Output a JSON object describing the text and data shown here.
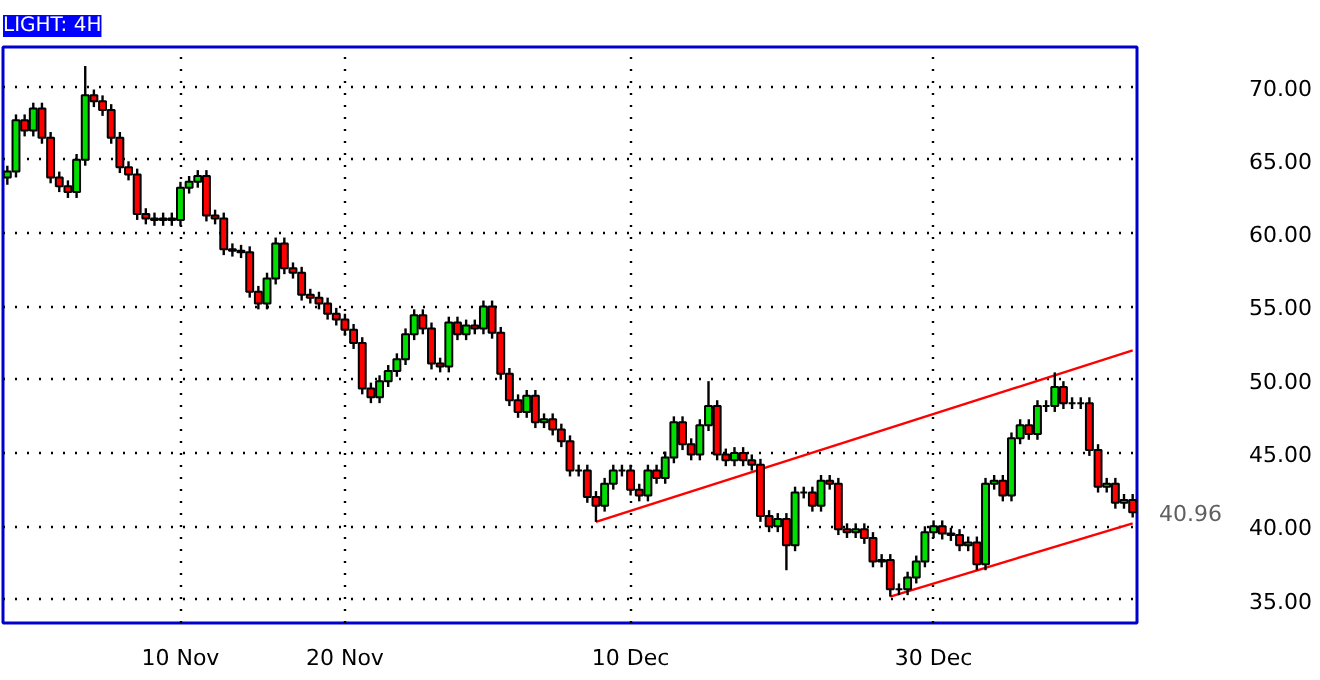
{
  "chart_data": {
    "type": "candlestick",
    "title": "LIGHT: 4H",
    "categories": [
      null,
      null,
      null,
      null,
      null,
      null,
      null,
      null,
      null,
      null,
      null,
      null,
      null,
      null,
      null,
      null,
      null,
      null,
      null,
      null,
      "10 Nov",
      null,
      null,
      null,
      null,
      null,
      null,
      null,
      null,
      null,
      null,
      null,
      null,
      null,
      null,
      null,
      null,
      null,
      null,
      "20 Nov",
      null,
      null,
      null,
      null,
      null,
      null,
      null,
      null,
      null,
      null,
      null,
      null,
      null,
      null,
      null,
      null,
      null,
      null,
      null,
      null,
      null,
      null,
      null,
      null,
      null,
      null,
      null,
      null,
      null,
      null,
      null,
      null,
      "10 Dec",
      null,
      null,
      null,
      null,
      null,
      null,
      null,
      null,
      null,
      null,
      null,
      null,
      null,
      null,
      null,
      null,
      null,
      null,
      null,
      null,
      null,
      null,
      null,
      null,
      null,
      null,
      null,
      null,
      null,
      null,
      null,
      null,
      null,
      null,
      "30 Dec",
      null,
      null,
      null,
      null,
      null,
      null,
      null,
      null,
      null,
      null,
      null,
      null,
      null,
      null,
      null,
      null,
      null,
      null,
      null,
      null,
      null,
      null,
      null
    ],
    "ylim": [
      33.4,
      72.7
    ],
    "yticks": [
      {
        "value": 35,
        "label": "35.00"
      },
      {
        "value": 40,
        "label": "40.00"
      },
      {
        "value": 45,
        "label": "45.00"
      },
      {
        "value": 50,
        "label": "50.00"
      },
      {
        "value": 55,
        "label": "55.00"
      },
      {
        "value": 60,
        "label": "60.00"
      },
      {
        "value": 65,
        "label": "65.00"
      },
      {
        "value": 70,
        "label": "70.00"
      }
    ],
    "grid": true,
    "series": [
      {
        "ohlc": [
          [
            63.8,
            64.6,
            63.3,
            64.2
          ],
          [
            64.2,
            68.1,
            63.8,
            67.7
          ],
          [
            67.7,
            68.1,
            66.6,
            67.0
          ],
          [
            67.0,
            68.9,
            66.6,
            68.5
          ],
          [
            68.5,
            68.9,
            66.1,
            66.5
          ],
          [
            66.5,
            66.9,
            63.4,
            63.8
          ],
          [
            63.8,
            64.2,
            62.8,
            63.2
          ],
          [
            63.2,
            63.6,
            62.4,
            62.8
          ],
          [
            62.8,
            65.4,
            62.4,
            65.0
          ],
          [
            65.0,
            71.4,
            64.6,
            69.4
          ],
          [
            69.4,
            69.8,
            68.6,
            69.0
          ],
          [
            69.0,
            69.4,
            68.0,
            68.4
          ],
          [
            68.4,
            68.8,
            66.1,
            66.5
          ],
          [
            66.5,
            66.9,
            64.1,
            64.5
          ],
          [
            64.5,
            64.9,
            63.6,
            64.0
          ],
          [
            64.0,
            64.4,
            60.9,
            61.3
          ],
          [
            61.3,
            61.7,
            60.6,
            61.0
          ],
          [
            61.0,
            61.4,
            60.5,
            60.9
          ],
          [
            60.9,
            61.4,
            60.5,
            61.0
          ],
          [
            61.0,
            61.4,
            60.5,
            60.9
          ],
          [
            60.9,
            63.5,
            60.5,
            63.1
          ],
          [
            63.1,
            63.9,
            62.7,
            63.5
          ],
          [
            63.5,
            64.3,
            63.1,
            63.9
          ],
          [
            63.9,
            64.3,
            60.8,
            61.2
          ],
          [
            61.2,
            61.6,
            60.6,
            61.0
          ],
          [
            61.0,
            61.4,
            58.5,
            58.9
          ],
          [
            58.9,
            59.3,
            58.4,
            58.8
          ],
          [
            58.8,
            59.2,
            58.3,
            58.7
          ],
          [
            58.7,
            59.1,
            55.6,
            56.0
          ],
          [
            56.0,
            56.4,
            54.8,
            55.2
          ],
          [
            55.2,
            57.3,
            54.8,
            56.9
          ],
          [
            56.9,
            59.7,
            56.5,
            59.3
          ],
          [
            59.3,
            59.7,
            57.2,
            57.6
          ],
          [
            57.6,
            58.0,
            56.9,
            57.3
          ],
          [
            57.3,
            57.7,
            55.4,
            55.8
          ],
          [
            55.8,
            56.2,
            55.2,
            55.6
          ],
          [
            55.6,
            56.0,
            54.8,
            55.2
          ],
          [
            55.2,
            55.6,
            54.1,
            54.5
          ],
          [
            54.5,
            54.9,
            53.7,
            54.1
          ],
          [
            54.1,
            54.5,
            53.0,
            53.4
          ],
          [
            53.4,
            53.8,
            52.1,
            52.5
          ],
          [
            52.5,
            52.9,
            49.0,
            49.4
          ],
          [
            49.4,
            49.8,
            48.4,
            48.8
          ],
          [
            48.8,
            50.3,
            48.4,
            49.9
          ],
          [
            49.9,
            51.0,
            49.5,
            50.6
          ],
          [
            50.6,
            51.8,
            50.2,
            51.4
          ],
          [
            51.4,
            53.5,
            51.0,
            53.1
          ],
          [
            53.1,
            54.8,
            52.7,
            54.4
          ],
          [
            54.4,
            54.8,
            53.1,
            53.5
          ],
          [
            53.5,
            53.9,
            50.7,
            51.1
          ],
          [
            51.1,
            51.5,
            50.5,
            50.9
          ],
          [
            50.9,
            54.3,
            50.5,
            53.9
          ],
          [
            53.9,
            54.3,
            52.7,
            53.1
          ],
          [
            53.1,
            54.1,
            52.7,
            53.7
          ],
          [
            53.7,
            54.1,
            53.1,
            53.5
          ],
          [
            53.5,
            55.4,
            53.1,
            55.0
          ],
          [
            55.0,
            55.4,
            52.8,
            53.2
          ],
          [
            53.2,
            53.6,
            50.0,
            50.4
          ],
          [
            50.4,
            50.8,
            48.2,
            48.6
          ],
          [
            48.6,
            49.0,
            47.4,
            47.8
          ],
          [
            47.8,
            49.3,
            47.4,
            48.9
          ],
          [
            48.9,
            49.3,
            46.7,
            47.1
          ],
          [
            47.1,
            47.7,
            46.7,
            47.3
          ],
          [
            47.3,
            47.7,
            46.2,
            46.6
          ],
          [
            46.6,
            47.0,
            45.4,
            45.8
          ],
          [
            45.8,
            46.2,
            43.4,
            43.8
          ],
          [
            43.8,
            44.2,
            43.4,
            43.8
          ],
          [
            43.8,
            44.2,
            41.6,
            42.0
          ],
          [
            42.0,
            42.4,
            40.3,
            41.4
          ],
          [
            41.4,
            43.3,
            41.0,
            42.9
          ],
          [
            42.9,
            44.2,
            42.5,
            43.8
          ],
          [
            43.8,
            44.2,
            43.4,
            43.8
          ],
          [
            43.8,
            44.2,
            42.1,
            42.5
          ],
          [
            42.5,
            42.9,
            41.7,
            42.1
          ],
          [
            42.1,
            44.2,
            41.7,
            43.8
          ],
          [
            43.8,
            44.2,
            42.9,
            43.3
          ],
          [
            43.3,
            45.1,
            42.9,
            44.7
          ],
          [
            44.7,
            47.5,
            44.3,
            47.1
          ],
          [
            47.1,
            47.5,
            45.2,
            45.6
          ],
          [
            45.6,
            46.0,
            44.5,
            44.9
          ],
          [
            44.9,
            47.3,
            44.5,
            46.9
          ],
          [
            46.9,
            49.9,
            46.5,
            48.2
          ],
          [
            48.2,
            48.6,
            44.5,
            44.9
          ],
          [
            44.9,
            45.3,
            44.1,
            44.5
          ],
          [
            44.5,
            45.4,
            44.1,
            45.0
          ],
          [
            45.0,
            45.4,
            44.1,
            44.5
          ],
          [
            44.5,
            44.9,
            43.8,
            44.2
          ],
          [
            44.2,
            44.6,
            40.3,
            40.7
          ],
          [
            40.7,
            41.1,
            39.6,
            40.0
          ],
          [
            40.0,
            40.9,
            39.6,
            40.5
          ],
          [
            40.5,
            40.9,
            37.0,
            38.7
          ],
          [
            38.7,
            42.7,
            38.3,
            42.3
          ],
          [
            42.3,
            42.7,
            41.9,
            42.3
          ],
          [
            42.3,
            42.7,
            41.0,
            41.4
          ],
          [
            41.4,
            43.5,
            41.0,
            43.1
          ],
          [
            43.1,
            43.5,
            42.5,
            42.9
          ],
          [
            42.9,
            43.3,
            39.4,
            39.8
          ],
          [
            39.8,
            40.2,
            39.2,
            39.6
          ],
          [
            39.6,
            40.2,
            39.2,
            39.8
          ],
          [
            39.8,
            40.2,
            38.8,
            39.2
          ],
          [
            39.2,
            39.6,
            37.2,
            37.6
          ],
          [
            37.6,
            38.1,
            37.2,
            37.7
          ],
          [
            37.7,
            38.1,
            35.2,
            35.7
          ],
          [
            35.7,
            36.1,
            35.3,
            35.7
          ],
          [
            35.7,
            36.9,
            35.3,
            36.5
          ],
          [
            36.5,
            38.0,
            36.1,
            37.6
          ],
          [
            37.6,
            40.0,
            37.2,
            39.6
          ],
          [
            39.6,
            40.4,
            39.2,
            40.0
          ],
          [
            40.0,
            40.4,
            39.1,
            39.5
          ],
          [
            39.5,
            39.9,
            39.0,
            39.4
          ],
          [
            39.4,
            39.8,
            38.3,
            38.7
          ],
          [
            38.7,
            39.3,
            38.3,
            38.9
          ],
          [
            38.9,
            39.3,
            37.0,
            37.4
          ],
          [
            37.4,
            43.3,
            37.0,
            42.9
          ],
          [
            42.9,
            43.5,
            42.5,
            43.1
          ],
          [
            43.1,
            43.5,
            41.7,
            42.1
          ],
          [
            42.1,
            46.4,
            41.7,
            46.0
          ],
          [
            46.0,
            47.3,
            45.6,
            46.9
          ],
          [
            46.9,
            47.3,
            45.9,
            46.3
          ],
          [
            46.3,
            48.6,
            45.9,
            48.2
          ],
          [
            48.2,
            48.6,
            47.8,
            48.2
          ],
          [
            48.2,
            50.5,
            47.8,
            49.5
          ],
          [
            49.5,
            49.9,
            48.0,
            48.4
          ],
          [
            48.4,
            48.8,
            48.0,
            48.4
          ],
          [
            48.4,
            48.8,
            48.0,
            48.4
          ],
          [
            48.4,
            48.8,
            44.8,
            45.2
          ],
          [
            45.2,
            45.6,
            42.3,
            42.7
          ],
          [
            42.7,
            43.3,
            42.3,
            42.9
          ],
          [
            42.9,
            43.3,
            41.2,
            41.6
          ],
          [
            41.6,
            42.2,
            41.2,
            41.8
          ],
          [
            41.8,
            42.2,
            40.6,
            40.96
          ]
        ],
        "colors": [
          "#00dd00",
          "#00dd00",
          "#ff0000",
          "#00dd00",
          "#ff0000",
          "#ff0000",
          "#ff0000",
          "#ff0000",
          "#00dd00",
          "#00dd00",
          "#ff0000",
          "#ff0000",
          "#ff0000",
          "#ff0000",
          "#ff0000",
          "#ff0000",
          "#ff0000",
          "#ff0000",
          "#00dd00",
          "#ff0000",
          "#00dd00",
          "#00dd00",
          "#00dd00",
          "#ff0000",
          "#ff0000",
          "#ff0000",
          "#ff0000",
          "#ff0000",
          "#ff0000",
          "#ff0000",
          "#00dd00",
          "#00dd00",
          "#ff0000",
          "#ff0000",
          "#ff0000",
          "#ff0000",
          "#ff0000",
          "#ff0000",
          "#ff0000",
          "#ff0000",
          "#ff0000",
          "#ff0000",
          "#ff0000",
          "#00dd00",
          "#00dd00",
          "#00dd00",
          "#00dd00",
          "#00dd00",
          "#ff0000",
          "#ff0000",
          "#ff0000",
          "#00dd00",
          "#ff0000",
          "#00dd00",
          "#ff0000",
          "#00dd00",
          "#ff0000",
          "#ff0000",
          "#ff0000",
          "#ff0000",
          "#00dd00",
          "#ff0000",
          "#00dd00",
          "#ff0000",
          "#ff0000",
          "#ff0000",
          "#000000",
          "#ff0000",
          "#ff0000",
          "#00dd00",
          "#00dd00",
          "#000000",
          "#ff0000",
          "#ff0000",
          "#00dd00",
          "#ff0000",
          "#00dd00",
          "#00dd00",
          "#ff0000",
          "#ff0000",
          "#00dd00",
          "#00dd00",
          "#ff0000",
          "#ff0000",
          "#00dd00",
          "#ff0000",
          "#ff0000",
          "#ff0000",
          "#ff0000",
          "#00dd00",
          "#ff0000",
          "#00dd00",
          "#000000",
          "#ff0000",
          "#00dd00",
          "#ff0000",
          "#ff0000",
          "#ff0000",
          "#00dd00",
          "#ff0000",
          "#ff0000",
          "#00dd00",
          "#ff0000",
          "#000000",
          "#00dd00",
          "#00dd00",
          "#00dd00",
          "#00dd00",
          "#ff0000",
          "#ff0000",
          "#ff0000",
          "#00dd00",
          "#ff0000",
          "#00dd00",
          "#00dd00",
          "#ff0000",
          "#00dd00",
          "#00dd00",
          "#ff0000",
          "#00dd00",
          "#000000",
          "#00dd00",
          "#ff0000",
          "#000000",
          "#000000",
          "#ff0000",
          "#ff0000",
          "#00dd00",
          "#ff0000",
          "#00dd00",
          "#ff0000"
        ]
      },
      {
        "type": "line",
        "values": [
          null,
          null,
          null,
          null,
          null,
          null,
          null,
          null,
          null,
          null,
          null,
          null,
          null,
          null,
          null,
          null,
          null,
          null,
          null,
          null,
          null,
          null,
          null,
          null,
          null,
          null,
          null,
          null,
          null,
          null,
          null,
          null,
          null,
          null,
          null,
          null,
          null,
          null,
          null,
          null,
          null,
          null,
          null,
          null,
          null,
          null,
          null,
          null,
          null,
          null,
          null,
          null,
          null,
          null,
          null,
          null,
          null,
          null,
          null,
          null,
          null,
          null,
          null,
          null,
          null,
          null,
          null,
          null,
          40.3,
          null,
          null,
          null,
          null,
          null,
          null,
          null,
          null,
          null,
          null,
          null,
          null,
          null,
          null,
          null,
          null,
          null,
          null,
          null,
          null,
          null,
          null,
          null,
          null,
          null,
          null,
          null,
          null,
          null,
          null,
          null,
          null,
          null,
          null,
          null,
          null,
          null,
          null,
          null,
          null,
          null,
          null,
          null,
          null,
          null,
          null,
          null,
          null,
          null,
          null,
          null,
          null,
          null,
          null,
          null,
          null,
          null,
          null,
          null,
          null,
          null,
          52.0
        ],
        "color": "#ff0000"
      },
      {
        "type": "line",
        "values": [
          null,
          null,
          null,
          null,
          null,
          null,
          null,
          null,
          null,
          null,
          null,
          null,
          null,
          null,
          null,
          null,
          null,
          null,
          null,
          null,
          null,
          null,
          null,
          null,
          null,
          null,
          null,
          null,
          null,
          null,
          null,
          null,
          null,
          null,
          null,
          null,
          null,
          null,
          null,
          null,
          null,
          null,
          null,
          null,
          null,
          null,
          null,
          null,
          null,
          null,
          null,
          null,
          null,
          null,
          null,
          null,
          null,
          null,
          null,
          null,
          null,
          null,
          null,
          null,
          null,
          null,
          null,
          null,
          null,
          null,
          null,
          null,
          null,
          null,
          null,
          null,
          null,
          null,
          null,
          null,
          null,
          null,
          null,
          null,
          null,
          null,
          null,
          null,
          null,
          null,
          null,
          null,
          null,
          null,
          null,
          null,
          null,
          null,
          null,
          null,
          null,
          null,
          35.2,
          null,
          null,
          null,
          null,
          null,
          null,
          null,
          null,
          null,
          null,
          null,
          null,
          null,
          null,
          null,
          null,
          null,
          null,
          null,
          null,
          null,
          null,
          null,
          null,
          null,
          null,
          null,
          40.2
        ],
        "color": "#ff0000"
      }
    ],
    "annotations": [
      "40.96"
    ]
  }
}
